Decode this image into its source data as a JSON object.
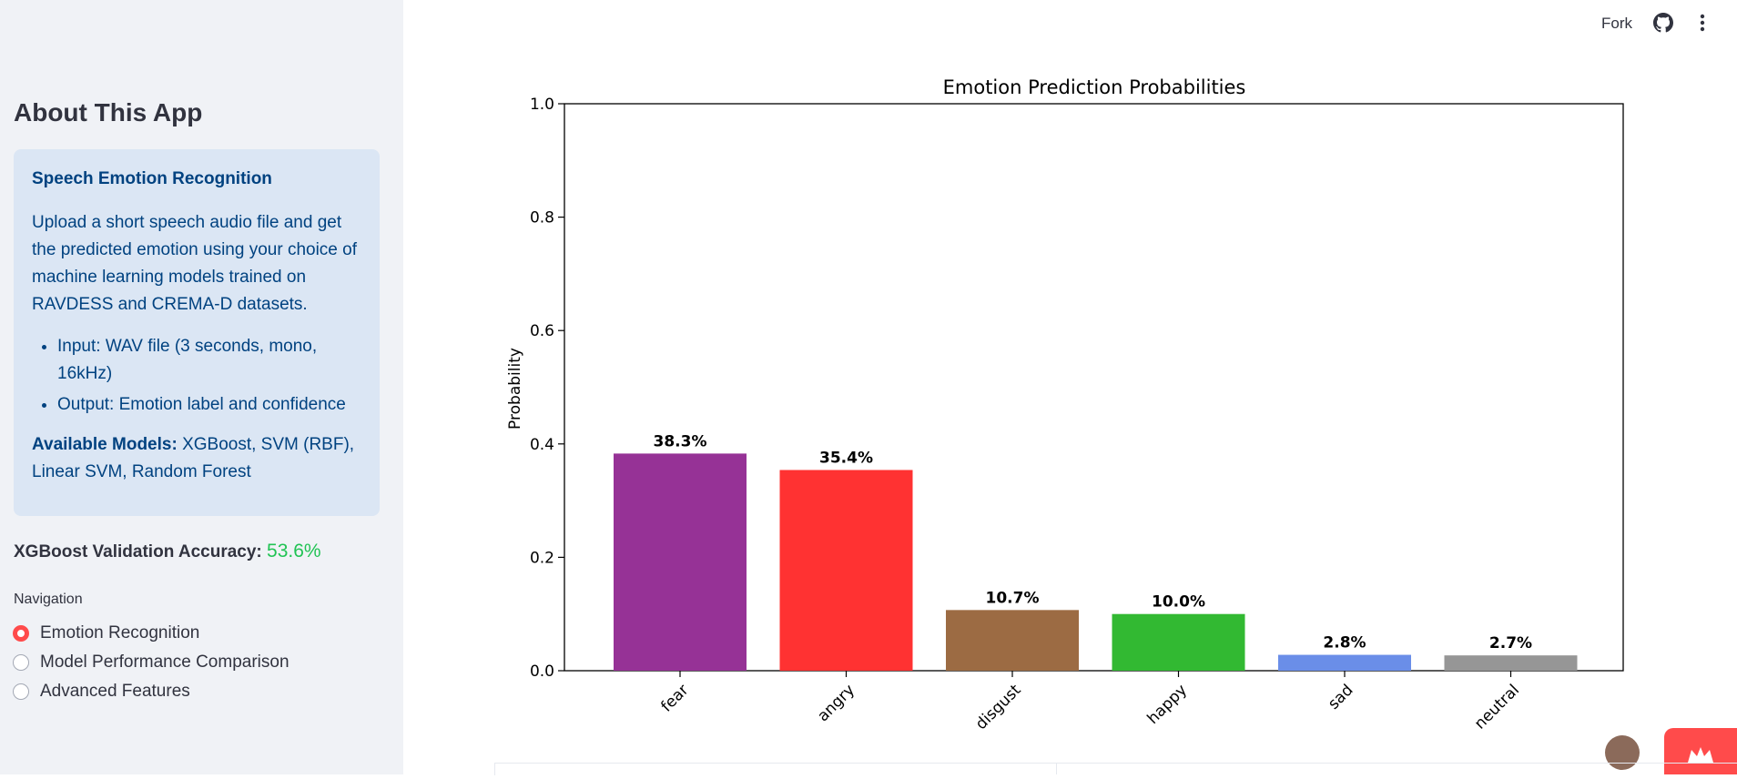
{
  "sidebar": {
    "title": "About This App",
    "info": {
      "heading": "Speech Emotion Recognition",
      "description": "Upload a short speech audio file and get the predicted emotion using your choice of machine learning models trained on RAVDESS and CREMA-D datasets.",
      "bullets": [
        "Input: WAV file (3 seconds, mono, 16kHz)",
        "Output: Emotion label and confidence"
      ],
      "models_label": "Available Models:",
      "models_value": " XGBoost, SVM (RBF), Linear SVM, Random Forest"
    },
    "accuracy_label": "XGBoost Validation Accuracy: ",
    "accuracy_value": "53.6%",
    "nav_label": "Navigation",
    "nav_options": [
      {
        "label": "Emotion Recognition",
        "selected": true
      },
      {
        "label": "Model Performance Comparison",
        "selected": false
      },
      {
        "label": "Advanced Features",
        "selected": false
      }
    ]
  },
  "topbar": {
    "fork_label": "Fork",
    "github_icon": "github-icon",
    "menu_icon": "kebab-menu-icon"
  },
  "chart_data": {
    "type": "bar",
    "title": "Emotion Prediction Probabilities",
    "ylabel": "Probability",
    "xlabel": "",
    "ylim": [
      0,
      1.0
    ],
    "yticks": [
      "0.0",
      "0.2",
      "0.4",
      "0.6",
      "0.8",
      "1.0"
    ],
    "categories": [
      "fear",
      "angry",
      "disgust",
      "happy",
      "sad",
      "neutral"
    ],
    "values": [
      0.383,
      0.354,
      0.107,
      0.1,
      0.028,
      0.027
    ],
    "labels": [
      "38.3%",
      "35.4%",
      "10.7%",
      "10.0%",
      "2.8%",
      "2.7%"
    ],
    "colors": [
      "#963296",
      "#ff3232",
      "#9c6b43",
      "#32b932",
      "#6a8ee8",
      "#969696"
    ],
    "grid": false
  }
}
